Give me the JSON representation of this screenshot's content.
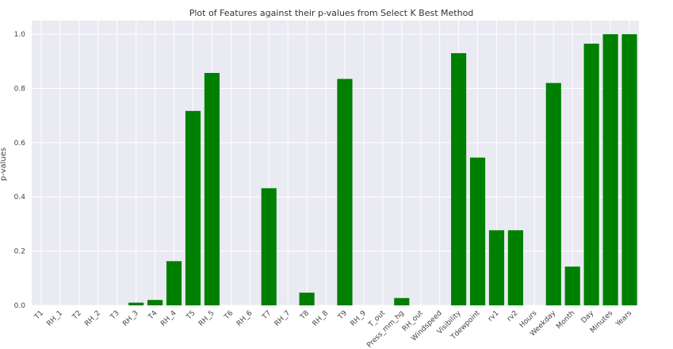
{
  "chart_data": {
    "type": "bar",
    "title": "Plot of Features against their p-values from Select K Best Method",
    "xlabel": "",
    "ylabel": "p-values",
    "ylim": [
      0,
      1.05
    ],
    "yticks": [
      "0.0",
      "0.2",
      "0.4",
      "0.6",
      "0.8",
      "1.0"
    ],
    "grid": true,
    "bar_color": "#008000",
    "plot_background": "#eaeaf2",
    "categories": [
      "T1",
      "RH_1",
      "T2",
      "RH_2",
      "T3",
      "RH_3",
      "T4",
      "RH_4",
      "T5",
      "RH_5",
      "T6",
      "RH_6",
      "T7",
      "RH_7",
      "T8",
      "RH_8",
      "T9",
      "RH_9",
      "T_out",
      "Press_mm_hg",
      "RH_out",
      "Windspeed",
      "Visibility",
      "Tdewpoint",
      "rv1",
      "rv2",
      "Hours",
      "Weekday",
      "Month",
      "Day",
      "Minutes",
      "Years"
    ],
    "values": [
      0,
      0,
      0,
      0,
      0,
      0.01,
      0.02,
      0.163,
      0.717,
      0.857,
      0,
      0,
      0.432,
      0,
      0.047,
      0,
      0.835,
      0,
      0,
      0.027,
      0,
      0,
      0.93,
      0.545,
      0.277,
      0.277,
      0,
      0.82,
      0.143,
      0.965,
      1.0,
      1.0
    ]
  }
}
